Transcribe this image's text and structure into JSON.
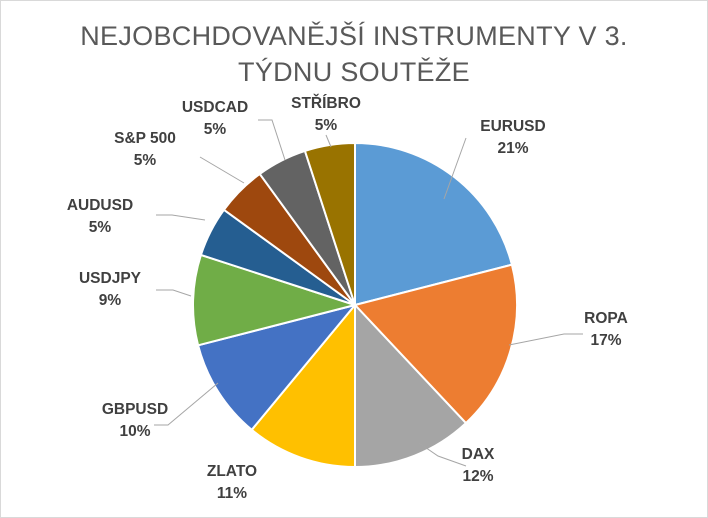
{
  "chart_data": {
    "type": "pie",
    "title_lines": [
      "NEJOBCHDOVANĚJŠÍ INSTRUMENTY V 3.",
      "TÝDNU SOUTĚŽE"
    ],
    "categories": [
      "EURUSD",
      "ROPA",
      "DAX",
      "ZLATO",
      "GBPUSD",
      "USDJPY",
      "AUDUSD",
      "S&P 500",
      "USDCAD",
      "STŘÍBRO"
    ],
    "values": [
      21,
      17,
      12,
      11,
      10,
      9,
      5,
      5,
      5,
      5
    ],
    "value_labels": [
      "21%",
      "17%",
      "12%",
      "11%",
      "10%",
      "9%",
      "5%",
      "5%",
      "5%",
      "5%"
    ],
    "colors": [
      "#5B9BD5",
      "#ED7D31",
      "#A5A5A5",
      "#FFC000",
      "#4472C4",
      "#70AD47",
      "#255E91",
      "#9E480E",
      "#636363",
      "#997300"
    ],
    "legend": "none",
    "data_labels": "outside-with-leader-lines"
  }
}
